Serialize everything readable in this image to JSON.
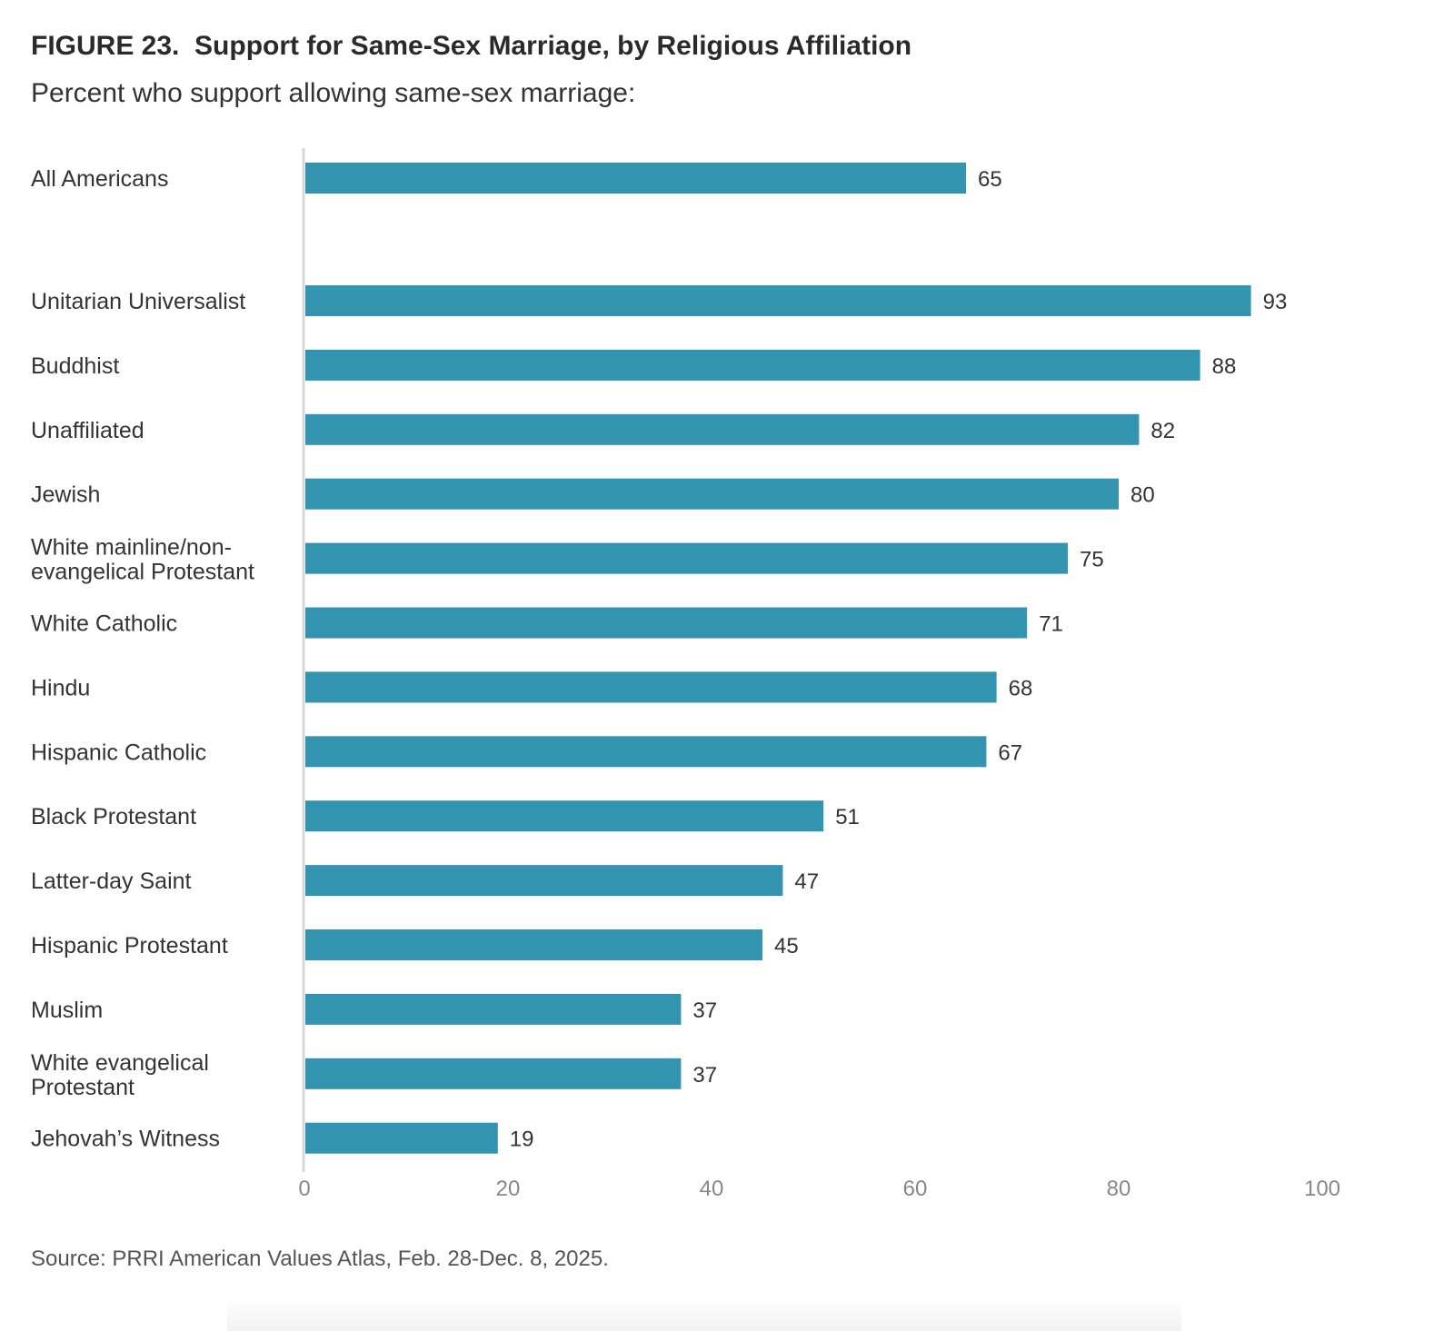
{
  "chart_data": {
    "type": "bar",
    "orientation": "horizontal",
    "title": "FIGURE 23.  Support for Same-Sex Marriage, by Religious Affiliation",
    "subtitle": "Percent who support allowing same-sex marriage:",
    "source": "Source: PRRI American Values Atlas, Feb. 28-Dec. 8, 2025.",
    "categories": [
      "All Americans",
      "Unitarian Universalist",
      "Buddhist",
      "Unaffiliated",
      "Jewish",
      "White mainline/non-\nevangelical Protestant",
      "White Catholic",
      "Hindu",
      "Hispanic Catholic",
      "Black Protestant",
      "Latter-day Saint",
      "Hispanic Protestant",
      "Muslim",
      "White evangelical\nProtestant",
      "Jehovah’s Witness"
    ],
    "values": [
      65,
      93,
      88,
      82,
      80,
      75,
      71,
      68,
      67,
      51,
      47,
      45,
      37,
      37,
      19
    ],
    "xlim": [
      0,
      100
    ],
    "xticks": [
      "0",
      "20",
      "40",
      "60",
      "80",
      "100"
    ],
    "xlabel": "",
    "ylabel": "",
    "grid": false,
    "bar_color": "#3394b0"
  }
}
